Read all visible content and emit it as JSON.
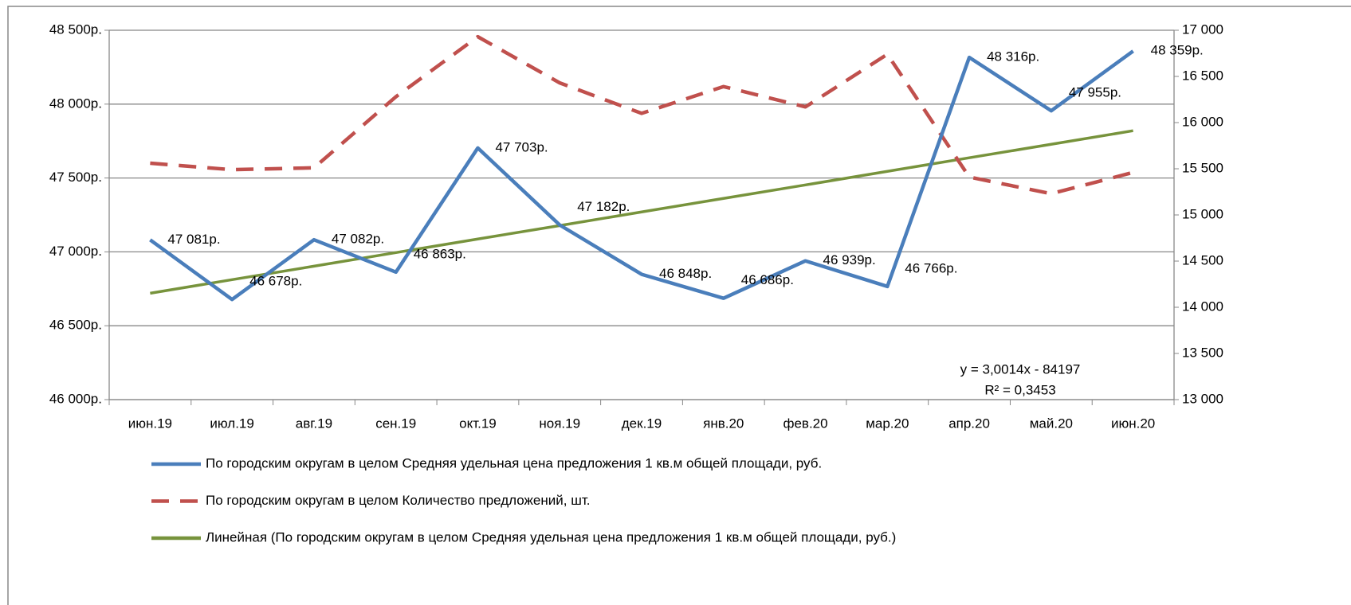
{
  "chart_data": {
    "type": "line",
    "categories": [
      "июн.19",
      "июл.19",
      "авг.19",
      "сен.19",
      "окт.19",
      "ноя.19",
      "дек.19",
      "янв.20",
      "фев.20",
      "мар.20",
      "апр.20",
      "май.20",
      "июн.20"
    ],
    "ylim": [
      46000,
      48500
    ],
    "yticks": [
      {
        "value": 46000,
        "label": "46 000р."
      },
      {
        "value": 46500,
        "label": "46 500р."
      },
      {
        "value": 47000,
        "label": "47 000р."
      },
      {
        "value": 47500,
        "label": "47 500р."
      },
      {
        "value": 48000,
        "label": "48 000р."
      },
      {
        "value": 48500,
        "label": "48 500р."
      }
    ],
    "y2lim": [
      13000,
      17000
    ],
    "y2ticks": [
      {
        "value": 13000,
        "label": "13 000"
      },
      {
        "value": 13500,
        "label": "13 500"
      },
      {
        "value": 14000,
        "label": "14 000"
      },
      {
        "value": 14500,
        "label": "14 500"
      },
      {
        "value": 15000,
        "label": "15 000"
      },
      {
        "value": 15500,
        "label": "15 500"
      },
      {
        "value": 16000,
        "label": "16 000"
      },
      {
        "value": 16500,
        "label": "16 500"
      },
      {
        "value": 17000,
        "label": "17 000"
      }
    ],
    "grid": true,
    "series": [
      {
        "name": "По городским округам в целом Средняя удельная цена предложения 1 кв.м общей площади, руб.",
        "color": "#4a7ebb",
        "dash": "solid",
        "values": [
          47081,
          46678,
          47082,
          46863,
          47703,
          47182,
          46848,
          46686,
          46939,
          46766,
          48316,
          47955,
          48359
        ],
        "value_labels": [
          "47 081р.",
          "46 678р.",
          "47 082р.",
          "46 863р.",
          "47 703р.",
          "47 182р.",
          "46 848р.",
          "46 686р.",
          "46 939р.",
          "46 766р.",
          "48 316р.",
          "47 955р.",
          "48 359р."
        ]
      },
      {
        "name": "По городским округам в целом Количество предложений, шт.",
        "color": "#c0504d",
        "dash": "dashed",
        "axis": "y2",
        "values": [
          15560,
          15490,
          15510,
          16280,
          16930,
          16430,
          16100,
          16390,
          16170,
          16740,
          15410,
          15230,
          15460
        ]
      },
      {
        "name": "Линейная (По городским округам в целом Средняя удельная цена предложения 1 кв.м общей площади, руб.)",
        "color": "#77933c",
        "dash": "solid",
        "values": [
          46720,
          46812,
          46903,
          46995,
          47087,
          47178,
          47270,
          47362,
          47453,
          47545,
          47637,
          47728,
          47820
        ]
      }
    ],
    "annotations": [
      "y = 3,0014x - 84197",
      "R² = 0,3453"
    ],
    "legend": "bottom"
  }
}
